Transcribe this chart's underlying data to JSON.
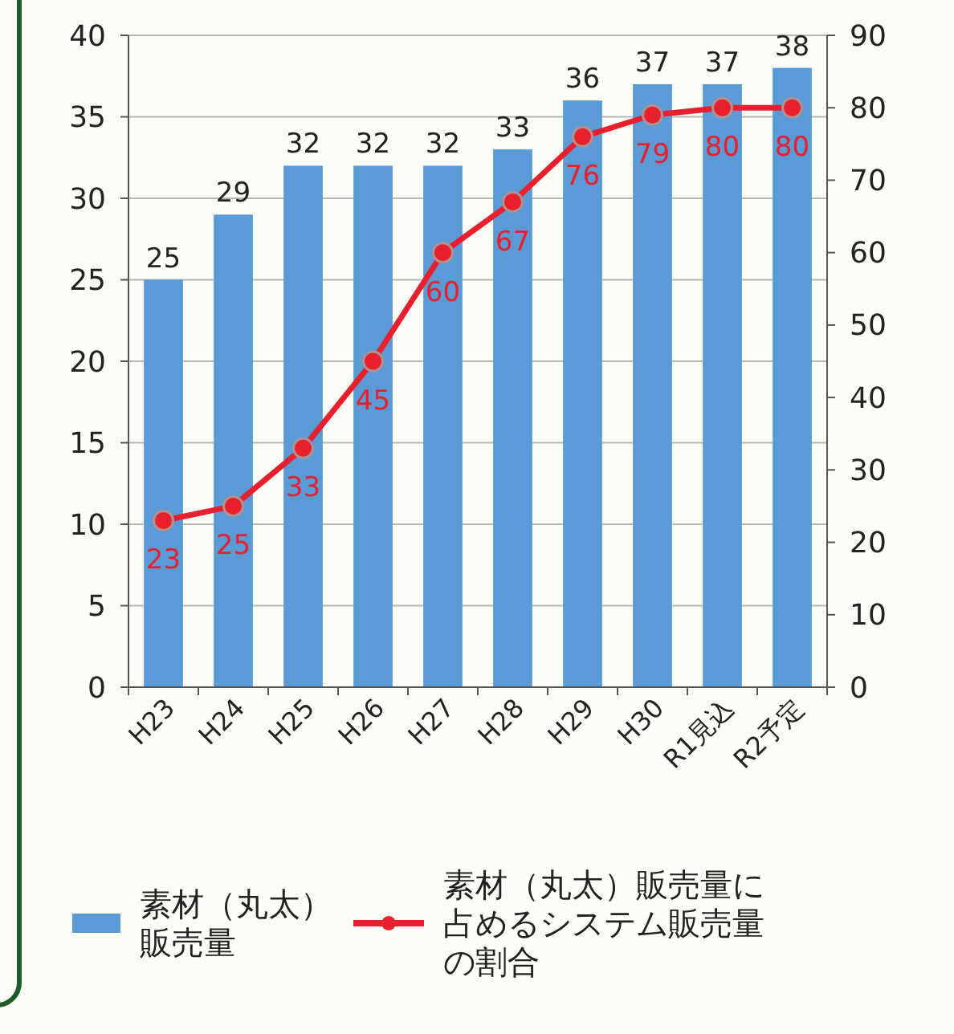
{
  "chart_data": {
    "type": "bar",
    "categories": [
      "H23",
      "H24",
      "H25",
      "H26",
      "H27",
      "H28",
      "H29",
      "H30",
      "R1見込",
      "R2予定"
    ],
    "series": [
      {
        "name": "素材（丸太）販売量",
        "type": "bar",
        "color": "#5b9bd5",
        "values": [
          25,
          29,
          32,
          32,
          32,
          33,
          36,
          37,
          37,
          38
        ]
      },
      {
        "name": "素材（丸太）販売量に占めるシステム販売量の割合",
        "type": "line",
        "axis": "y2",
        "color": "#e8202e",
        "marker": "circle",
        "values": [
          23,
          25,
          33,
          45,
          60,
          67,
          76,
          79,
          80,
          80
        ]
      }
    ],
    "ylim": [
      0,
      40
    ],
    "yticks": [
      0,
      5,
      10,
      15,
      20,
      25,
      30,
      35,
      40
    ],
    "y2lim": [
      0,
      90
    ],
    "y2ticks": [
      0,
      10,
      20,
      30,
      40,
      50,
      60,
      70,
      80,
      90
    ],
    "grid": "y",
    "data_labels": true,
    "legend": "bottom"
  }
}
